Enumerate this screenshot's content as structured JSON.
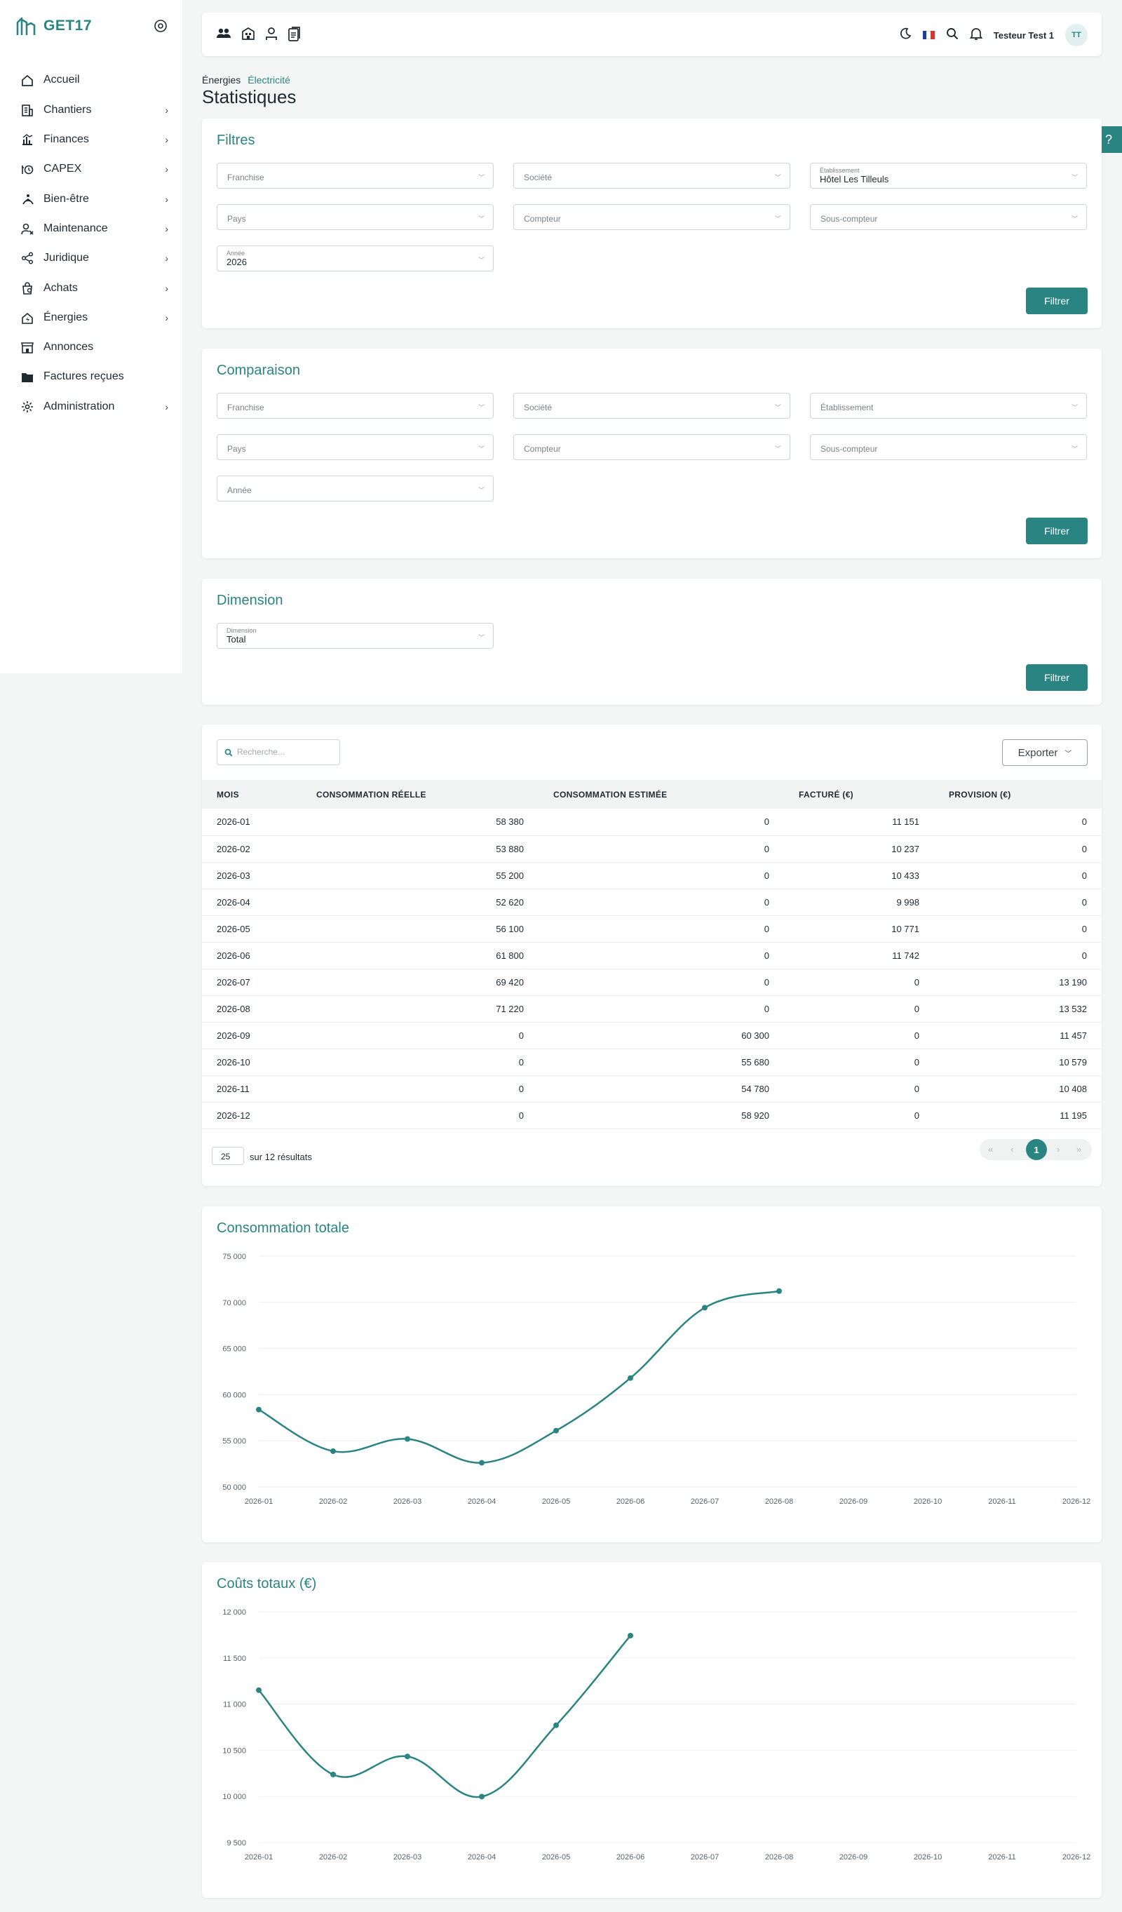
{
  "app": {
    "name": "GET17"
  },
  "sidebar": {
    "items": [
      {
        "label": "Accueil",
        "icon": "home-icon",
        "chevron": false
      },
      {
        "label": "Chantiers",
        "icon": "building-icon",
        "chevron": true
      },
      {
        "label": "Finances",
        "icon": "finance-icon",
        "chevron": true
      },
      {
        "label": "CAPEX",
        "icon": "capex-icon",
        "chevron": true
      },
      {
        "label": "Bien-être",
        "icon": "wellbeing-icon",
        "chevron": true
      },
      {
        "label": "Maintenance",
        "icon": "maintenance-icon",
        "chevron": true
      },
      {
        "label": "Juridique",
        "icon": "share-icon",
        "chevron": true
      },
      {
        "label": "Achats",
        "icon": "purchase-icon",
        "chevron": true
      },
      {
        "label": "Énergies",
        "icon": "energy-icon",
        "chevron": true
      },
      {
        "label": "Annonces",
        "icon": "store-icon",
        "chevron": false
      },
      {
        "label": "Factures reçues",
        "icon": "folder-icon",
        "chevron": false
      },
      {
        "label": "Administration",
        "icon": "gear-icon",
        "chevron": true
      }
    ]
  },
  "header": {
    "user_name": "Testeur Test 1",
    "avatar_initials": "TT"
  },
  "breadcrumb": {
    "items": [
      "Énergies",
      "Électricité"
    ]
  },
  "page": {
    "title": "Statistiques",
    "help": "?"
  },
  "filters": {
    "title": "Filtres",
    "button": "Filtrer",
    "fields": [
      {
        "placeholder": "Franchise",
        "label": "",
        "value": ""
      },
      {
        "placeholder": "Société",
        "label": "",
        "value": ""
      },
      {
        "placeholder": "",
        "label": "Établissement",
        "value": "Hôtel Les Tilleuls"
      },
      {
        "placeholder": "Pays",
        "label": "",
        "value": ""
      },
      {
        "placeholder": "Compteur",
        "label": "",
        "value": ""
      },
      {
        "placeholder": "Sous-compteur",
        "label": "",
        "value": ""
      },
      {
        "placeholder": "",
        "label": "Année",
        "value": "2026"
      }
    ]
  },
  "comparison": {
    "title": "Comparaison",
    "button": "Filtrer",
    "fields": [
      {
        "placeholder": "Franchise"
      },
      {
        "placeholder": "Société"
      },
      {
        "placeholder": "Établissement"
      },
      {
        "placeholder": "Pays"
      },
      {
        "placeholder": "Compteur"
      },
      {
        "placeholder": "Sous-compteur"
      },
      {
        "placeholder": "Année"
      }
    ]
  },
  "dimension": {
    "title": "Dimension",
    "button": "Filtrer",
    "label": "Dimension",
    "value": "Total"
  },
  "table": {
    "search_placeholder": "Recherche...",
    "export_label": "Exporter",
    "columns": [
      "MOIS",
      "CONSOMMATION RÉELLE",
      "CONSOMMATION ESTIMÉE",
      "FACTURÉ (€)",
      "PROVISION (€)"
    ],
    "rows": [
      [
        "2026-01",
        "58 380",
        "0",
        "11 151",
        "0"
      ],
      [
        "2026-02",
        "53 880",
        "0",
        "10 237",
        "0"
      ],
      [
        "2026-03",
        "55 200",
        "0",
        "10 433",
        "0"
      ],
      [
        "2026-04",
        "52 620",
        "0",
        "9 998",
        "0"
      ],
      [
        "2026-05",
        "56 100",
        "0",
        "10 771",
        "0"
      ],
      [
        "2026-06",
        "61 800",
        "0",
        "11 742",
        "0"
      ],
      [
        "2026-07",
        "69 420",
        "0",
        "0",
        "13 190"
      ],
      [
        "2026-08",
        "71 220",
        "0",
        "0",
        "13 532"
      ],
      [
        "2026-09",
        "0",
        "60 300",
        "0",
        "11 457"
      ],
      [
        "2026-10",
        "0",
        "55 680",
        "0",
        "10 579"
      ],
      [
        "2026-11",
        "0",
        "54 780",
        "0",
        "10 408"
      ],
      [
        "2026-12",
        "0",
        "58 920",
        "0",
        "11 195"
      ]
    ],
    "page_size": "25",
    "results_text": "sur 12 résultats",
    "current_page": "1",
    "pager_glyphs": [
      "«",
      "‹",
      "›",
      "»"
    ]
  },
  "chart_data": [
    {
      "type": "line",
      "title": "Consommation totale",
      "x": [
        "2026-01",
        "2026-02",
        "2026-03",
        "2026-04",
        "2026-05",
        "2026-06",
        "2026-07",
        "2026-08",
        "2026-09",
        "2026-10",
        "2026-11",
        "2026-12"
      ],
      "values": [
        58380,
        53880,
        55200,
        52620,
        56100,
        61800,
        69420,
        71220,
        null,
        null,
        null,
        null
      ],
      "ylim": [
        50000,
        75000
      ],
      "yticks": [
        50000,
        55000,
        60000,
        65000,
        70000,
        75000
      ],
      "ytick_labels": [
        "50 000",
        "55 000",
        "60 000",
        "65 000",
        "70 000",
        "75 000"
      ],
      "grid": true,
      "color": "#2a8582"
    },
    {
      "type": "line",
      "title": "Coûts totaux (€)",
      "x": [
        "2026-01",
        "2026-02",
        "2026-03",
        "2026-04",
        "2026-05",
        "2026-06",
        "2026-07",
        "2026-08",
        "2026-09",
        "2026-10",
        "2026-11",
        "2026-12"
      ],
      "values": [
        11151,
        10237,
        10433,
        9998,
        10771,
        11742,
        null,
        null,
        null,
        null,
        null,
        null
      ],
      "ylim": [
        9500,
        12000
      ],
      "yticks": [
        9500,
        10000,
        10500,
        11000,
        11500,
        12000
      ],
      "ytick_labels": [
        "9 500",
        "10 000",
        "10 500",
        "11 000",
        "11 500",
        "12 000"
      ],
      "grid": true,
      "color": "#2a8582"
    }
  ],
  "colors": {
    "accent": "#2a8582"
  }
}
